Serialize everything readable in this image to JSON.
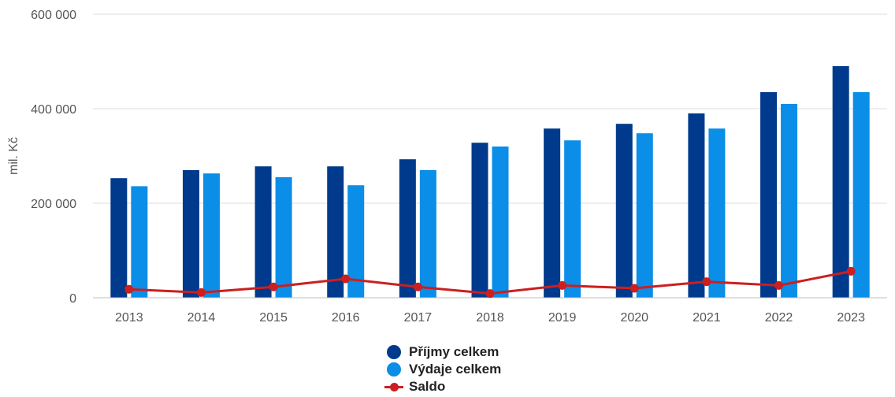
{
  "chart_data": {
    "type": "bar",
    "title": "",
    "xlabel": "",
    "ylabel": "mil. Kč",
    "ylim": [
      0,
      600000
    ],
    "yticks": [
      0,
      200000,
      400000,
      600000
    ],
    "ytick_labels": [
      "0",
      "200 000",
      "400 000",
      "600 000"
    ],
    "grid": true,
    "legend_position": "bottom",
    "categories": [
      "2013",
      "2014",
      "2015",
      "2016",
      "2017",
      "2018",
      "2019",
      "2020",
      "2021",
      "2022",
      "2023"
    ],
    "series": [
      {
        "name": "Příjmy celkem",
        "type": "bar",
        "color": "#003a8c",
        "values": [
          253000,
          270000,
          278000,
          278000,
          293000,
          328000,
          358000,
          368000,
          390000,
          435000,
          490000
        ]
      },
      {
        "name": "Výdaje celkem",
        "type": "bar",
        "color": "#0a8ee8",
        "values": [
          236000,
          263000,
          255000,
          238000,
          270000,
          320000,
          333000,
          348000,
          358000,
          410000,
          435000
        ]
      },
      {
        "name": "Saldo",
        "type": "line",
        "color": "#cc1f1f",
        "values": [
          18000,
          11000,
          23000,
          40000,
          23000,
          9000,
          26000,
          20000,
          34000,
          26000,
          56000
        ]
      }
    ]
  }
}
